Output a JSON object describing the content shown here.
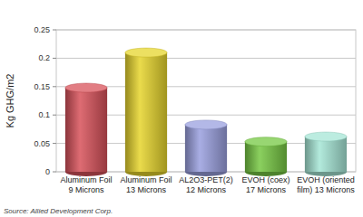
{
  "chart_data": {
    "type": "bar",
    "y_label": "Kg GHG/m2",
    "source": "Source: Allied Development Corp.",
    "categories": [
      "Aluminum Foil\n9 Microns",
      "Aluminum Foil\n13 Microns",
      "AL2O3-PET(2)\n12 Microns",
      "EVOH (coex)\n17 Microns",
      "EVOH (oriented\nfilm) 13 Microns"
    ],
    "values": [
      0.148,
      0.21,
      0.083,
      0.053,
      0.062
    ],
    "colors": [
      "#d8525a",
      "#e6d52c",
      "#9aa0df",
      "#76c843",
      "#a6e6d6"
    ],
    "ylim": [
      0,
      0.25
    ],
    "yticks": [
      0,
      0.05,
      0.1,
      0.15,
      0.2,
      0.25
    ],
    "grid": true
  }
}
